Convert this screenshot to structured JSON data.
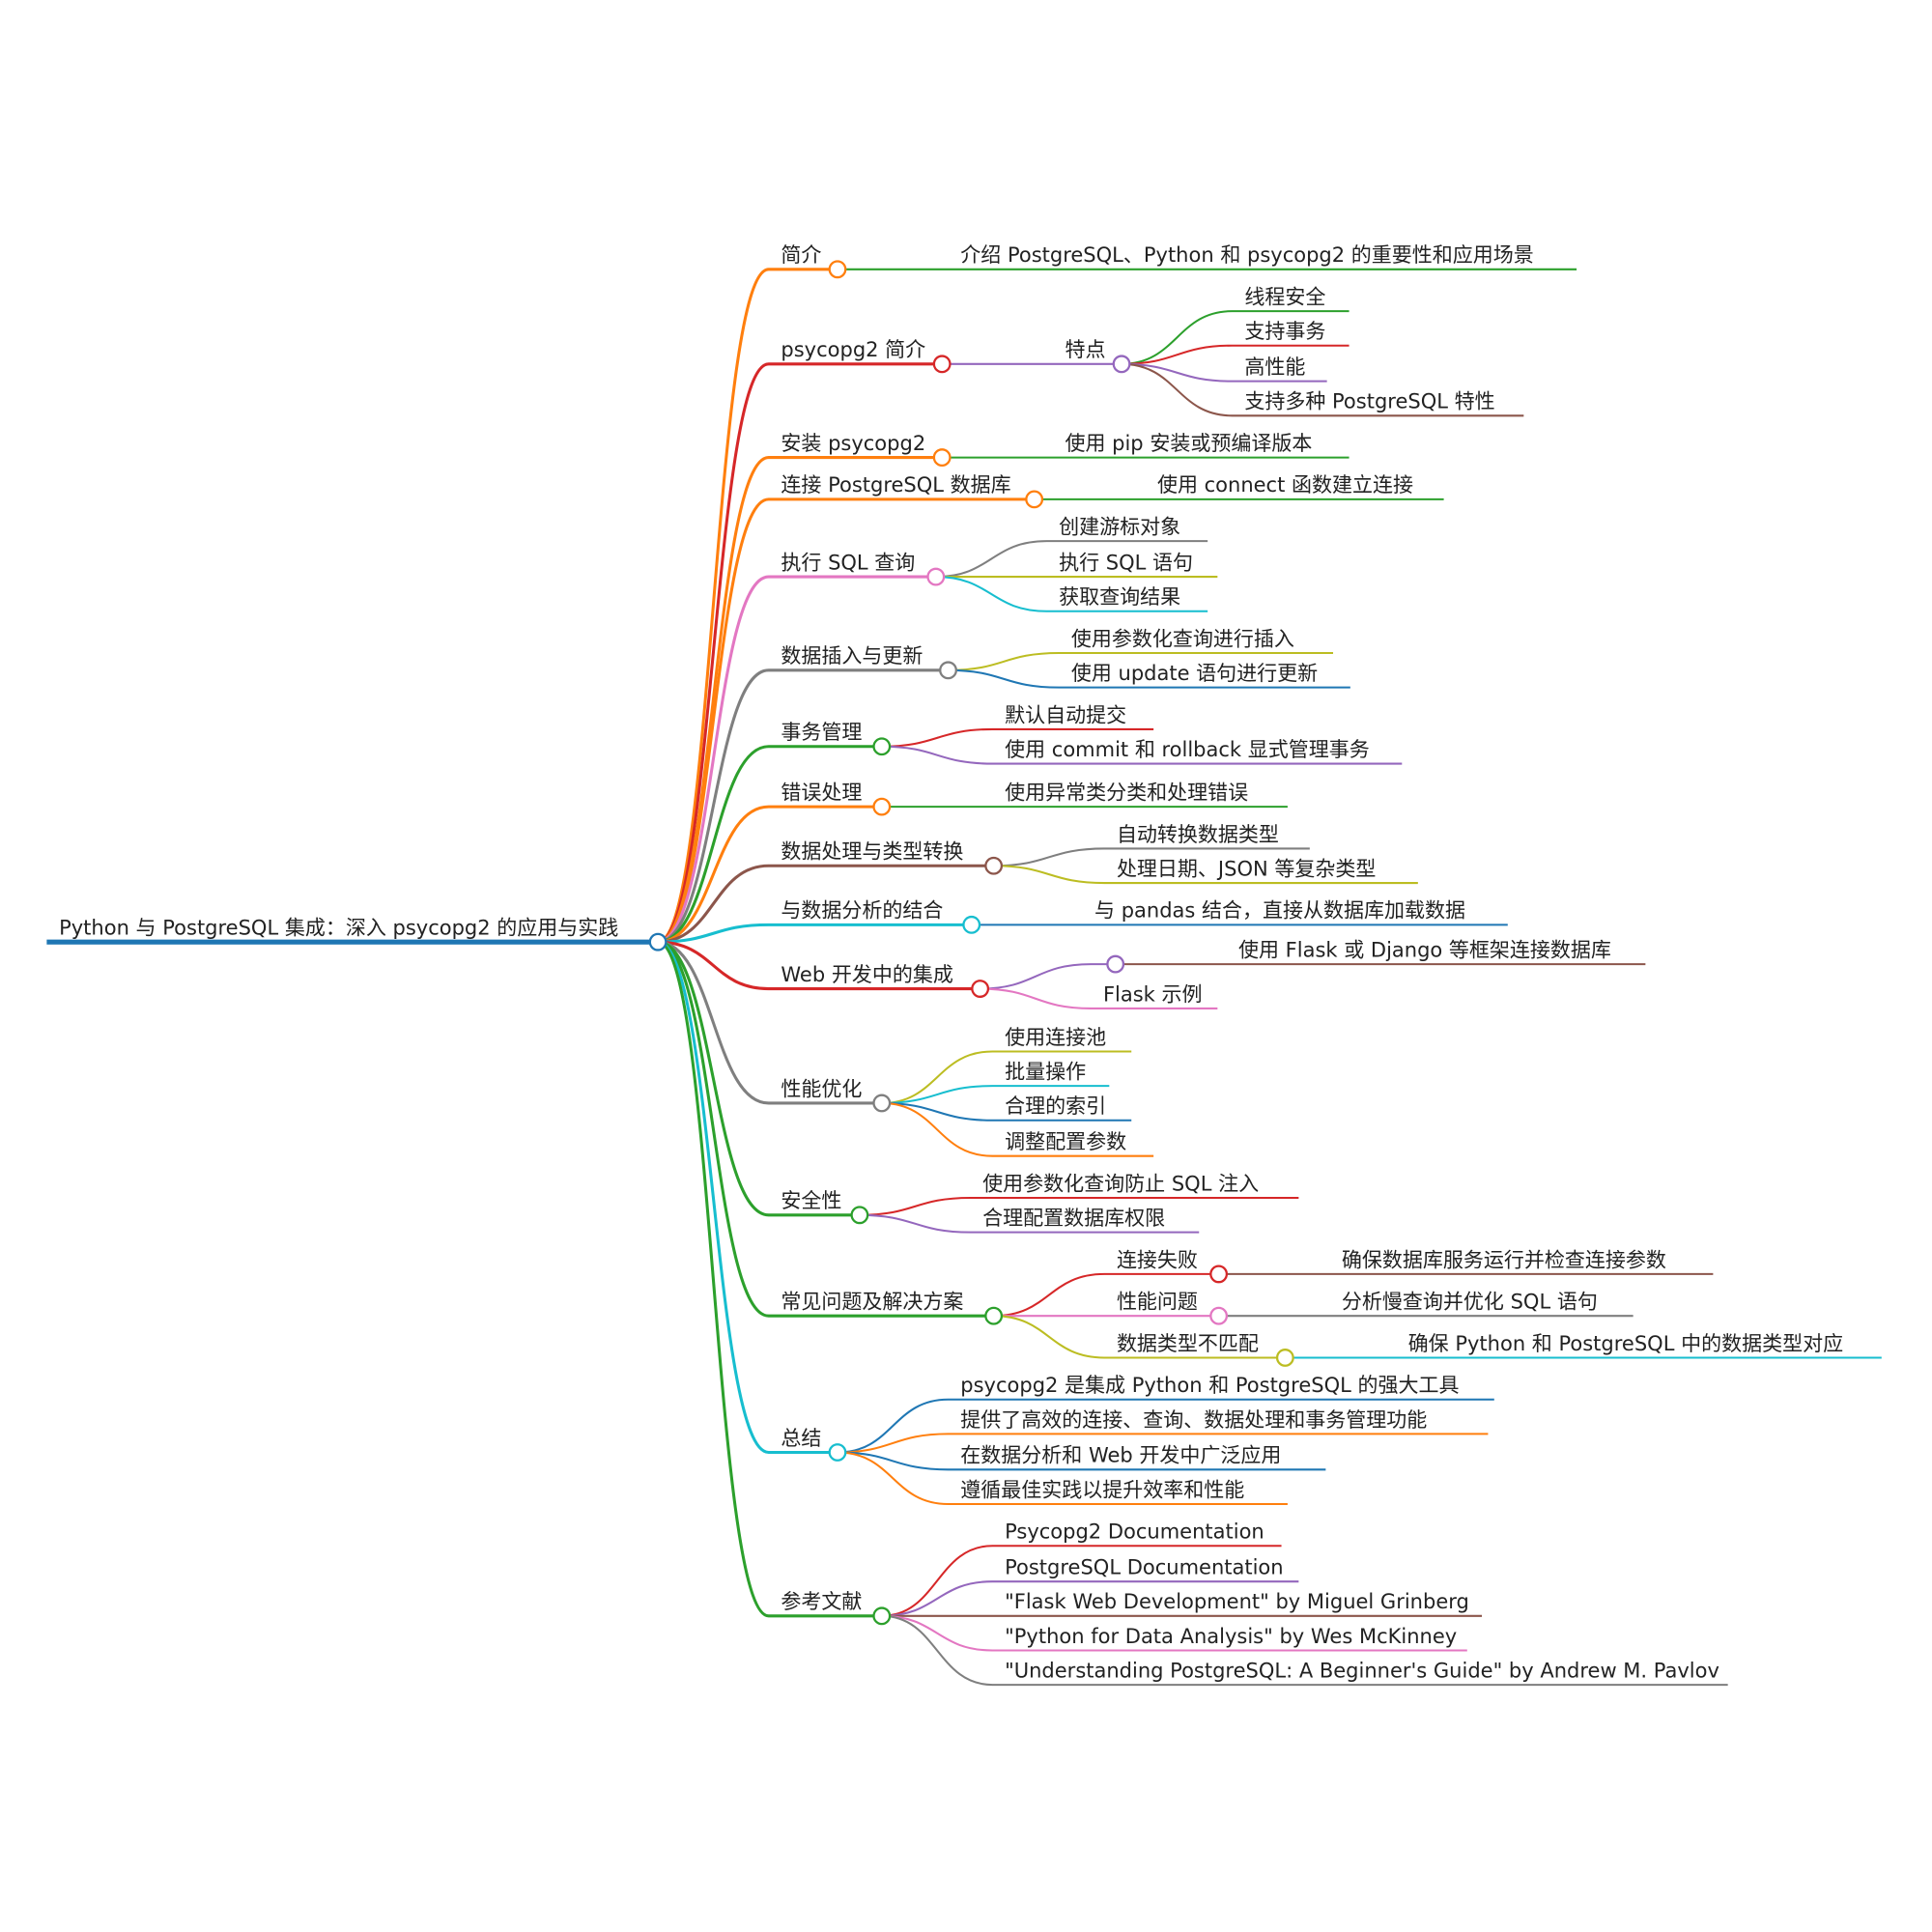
{
  "root": {
    "label": "Python 与 PostgreSQL 集成：深入 psycopg2 的应用与实践",
    "color": "#1f77b4"
  },
  "branches": [
    {
      "label": "简介",
      "color": "#ff7f0e",
      "children": [
        {
          "label": "介绍 PostgreSQL、Python 和 psycopg2 的重要性和应用场景",
          "color": "#2ca02c"
        }
      ]
    },
    {
      "label": "psycopg2 简介",
      "color": "#d62728",
      "children": [
        {
          "label": "特点",
          "color": "#9467bd",
          "children": [
            {
              "label": "线程安全",
              "color": "#2ca02c"
            },
            {
              "label": "支持事务",
              "color": "#d62728"
            },
            {
              "label": "高性能",
              "color": "#9467bd"
            },
            {
              "label": "支持多种 PostgreSQL 特性",
              "color": "#8c564b"
            }
          ]
        }
      ]
    },
    {
      "label": "安装 psycopg2",
      "color": "#ff7f0e",
      "children": [
        {
          "label": "使用 pip 安装或预编译版本",
          "color": "#2ca02c"
        }
      ]
    },
    {
      "label": "连接 PostgreSQL 数据库",
      "color": "#ff7f0e",
      "children": [
        {
          "label": "使用 connect 函数建立连接",
          "color": "#2ca02c"
        }
      ]
    },
    {
      "label": "执行 SQL 查询",
      "color": "#e377c2",
      "children": [
        {
          "label": "创建游标对象",
          "color": "#7f7f7f"
        },
        {
          "label": "执行 SQL 语句",
          "color": "#bcbd22"
        },
        {
          "label": "获取查询结果",
          "color": "#17becf"
        }
      ]
    },
    {
      "label": "数据插入与更新",
      "color": "#7f7f7f",
      "children": [
        {
          "label": "使用参数化查询进行插入",
          "color": "#bcbd22"
        },
        {
          "label": "使用 update 语句进行更新",
          "color": "#1f77b4"
        }
      ]
    },
    {
      "label": "事务管理",
      "color": "#2ca02c",
      "children": [
        {
          "label": "默认自动提交",
          "color": "#d62728"
        },
        {
          "label": "使用 commit 和 rollback 显式管理事务",
          "color": "#9467bd"
        }
      ]
    },
    {
      "label": "错误处理",
      "color": "#ff7f0e",
      "children": [
        {
          "label": "使用异常类分类和处理错误",
          "color": "#2ca02c"
        }
      ]
    },
    {
      "label": "数据处理与类型转换",
      "color": "#8c564b",
      "children": [
        {
          "label": "自动转换数据类型",
          "color": "#7f7f7f"
        },
        {
          "label": "处理日期、JSON 等复杂类型",
          "color": "#bcbd22"
        }
      ]
    },
    {
      "label": "与数据分析的结合",
      "color": "#17becf",
      "children": [
        {
          "label": "与 pandas 结合，直接从数据库加载数据",
          "color": "#1f77b4"
        }
      ]
    },
    {
      "label": "Web 开发中的集成",
      "color": "#d62728",
      "children": [
        {
          "label": "",
          "color": "#9467bd",
          "children": [
            {
              "label": "使用 Flask 或 Django 等框架连接数据库",
              "color": "#8c564b"
            }
          ]
        },
        {
          "label": "Flask 示例",
          "color": "#e377c2"
        }
      ]
    },
    {
      "label": "性能优化",
      "color": "#7f7f7f",
      "children": [
        {
          "label": "使用连接池",
          "color": "#bcbd22"
        },
        {
          "label": "批量操作",
          "color": "#17becf"
        },
        {
          "label": "合理的索引",
          "color": "#1f77b4"
        },
        {
          "label": "调整配置参数",
          "color": "#ff7f0e"
        }
      ]
    },
    {
      "label": "安全性",
      "color": "#2ca02c",
      "children": [
        {
          "label": "使用参数化查询防止 SQL 注入",
          "color": "#d62728"
        },
        {
          "label": "合理配置数据库权限",
          "color": "#9467bd"
        }
      ]
    },
    {
      "label": "常见问题及解决方案",
      "color": "#2ca02c",
      "children": [
        {
          "label": "连接失败",
          "color": "#d62728",
          "children": [
            {
              "label": "确保数据库服务运行并检查连接参数",
              "color": "#8c564b"
            }
          ]
        },
        {
          "label": "性能问题",
          "color": "#e377c2",
          "children": [
            {
              "label": "分析慢查询并优化 SQL 语句",
              "color": "#7f7f7f"
            }
          ]
        },
        {
          "label": "数据类型不匹配",
          "color": "#bcbd22",
          "children": [
            {
              "label": "确保 Python 和 PostgreSQL 中的数据类型对应",
              "color": "#17becf"
            }
          ]
        }
      ]
    },
    {
      "label": "总结",
      "color": "#17becf",
      "children": [
        {
          "label": "psycopg2 是集成 Python 和 PostgreSQL 的强大工具",
          "color": "#1f77b4"
        },
        {
          "label": "提供了高效的连接、查询、数据处理和事务管理功能",
          "color": "#ff7f0e"
        },
        {
          "label": "在数据分析和 Web 开发中广泛应用",
          "color": "#1f77b4"
        },
        {
          "label": "遵循最佳实践以提升效率和性能",
          "color": "#ff7f0e"
        }
      ]
    },
    {
      "label": "参考文献",
      "color": "#2ca02c",
      "children": [
        {
          "label": "Psycopg2 Documentation",
          "color": "#d62728"
        },
        {
          "label": "PostgreSQL Documentation",
          "color": "#9467bd"
        },
        {
          "label": "\"Flask Web Development\" by Miguel Grinberg",
          "color": "#8c564b"
        },
        {
          "label": "\"Python for Data Analysis\" by Wes McKinney",
          "color": "#e377c2"
        },
        {
          "label": "\"Understanding PostgreSQL: A Beginner's Guide\" by Andrew M. Pavlov",
          "color": "#7f7f7f"
        }
      ]
    }
  ]
}
